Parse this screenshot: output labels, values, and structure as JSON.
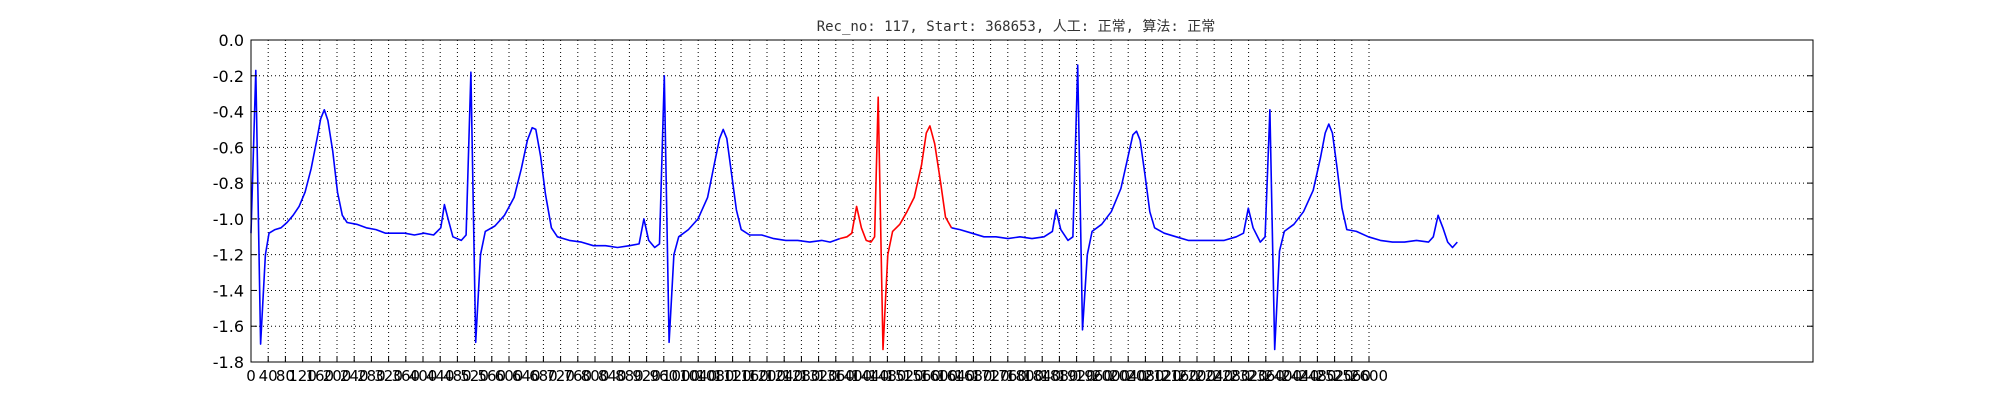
{
  "chart_data": {
    "type": "line",
    "title": "Rec_no: 117, Start: 368653, 人工: 正常, 算法: 正常",
    "xlabel": "",
    "ylabel": "",
    "xlim": [
      0,
      1300
    ],
    "ylim": [
      -1.8,
      0.0
    ],
    "grid": true,
    "y_ticks": [
      "0.0",
      "-0.2",
      "-0.4",
      "-0.6",
      "-0.8",
      "-1.0",
      "-1.2",
      "-1.4",
      "-1.6",
      "-1.8"
    ],
    "x_ticks": [
      "0",
      "40",
      "80",
      "120",
      "160",
      "200",
      "240",
      "280",
      "320",
      "360",
      "400",
      "440",
      "480",
      "520",
      "560",
      "600",
      "640",
      "680",
      "720",
      "760",
      "800",
      "840",
      "880",
      "920",
      "960",
      "1000",
      "1040",
      "1080",
      "1120",
      "1160",
      "1200",
      "1240",
      "1280",
      "1320",
      "1360",
      "1400",
      "1440",
      "1480",
      "1520",
      "1560",
      "1600",
      "1640",
      "1680",
      "1720",
      "1760",
      "1800",
      "1840",
      "1880",
      "1920",
      "1960",
      "2000",
      "2040",
      "2080",
      "2120",
      "2160",
      "2200",
      "2240",
      "2280",
      "2320",
      "2360",
      "2400",
      "2440",
      "2480",
      "2520",
      "2560",
      "2600"
    ],
    "series": [
      {
        "color": "#0000ff",
        "points": [
          [
            0,
            -1.08
          ],
          [
            4,
            -0.17
          ],
          [
            8,
            -1.7
          ],
          [
            12,
            -1.2
          ],
          [
            15,
            -1.08
          ],
          [
            20,
            -1.06
          ],
          [
            25,
            -1.05
          ],
          [
            30,
            -1.02
          ],
          [
            35,
            -0.98
          ],
          [
            40,
            -0.93
          ],
          [
            45,
            -0.85
          ],
          [
            50,
            -0.72
          ],
          [
            55,
            -0.55
          ],
          [
            58,
            -0.44
          ],
          [
            61,
            -0.39
          ],
          [
            64,
            -0.45
          ],
          [
            68,
            -0.62
          ],
          [
            72,
            -0.85
          ],
          [
            76,
            -0.98
          ],
          [
            80,
            -1.02
          ],
          [
            88,
            -1.03
          ],
          [
            96,
            -1.05
          ],
          [
            104,
            -1.06
          ],
          [
            112,
            -1.08
          ],
          [
            120,
            -1.08
          ],
          [
            128,
            -1.08
          ],
          [
            136,
            -1.09
          ],
          [
            144,
            -1.08
          ],
          [
            152,
            -1.09
          ],
          [
            158,
            -1.05
          ],
          [
            161,
            -0.92
          ],
          [
            164,
            -1.0
          ],
          [
            168,
            -1.1
          ],
          [
            175,
            -1.12
          ],
          [
            179,
            -1.09
          ],
          [
            183,
            -0.18
          ],
          [
            187,
            -1.69
          ],
          [
            191,
            -1.2
          ],
          [
            195,
            -1.07
          ],
          [
            203,
            -1.04
          ],
          [
            211,
            -0.98
          ],
          [
            219,
            -0.88
          ],
          [
            225,
            -0.72
          ],
          [
            230,
            -0.56
          ],
          [
            234,
            -0.49
          ],
          [
            237,
            -0.5
          ],
          [
            241,
            -0.65
          ],
          [
            245,
            -0.86
          ],
          [
            250,
            -1.05
          ],
          [
            255,
            -1.1
          ],
          [
            265,
            -1.12
          ],
          [
            275,
            -1.13
          ],
          [
            285,
            -1.15
          ],
          [
            295,
            -1.15
          ],
          [
            305,
            -1.16
          ],
          [
            315,
            -1.15
          ],
          [
            323,
            -1.14
          ],
          [
            327,
            -1.0
          ],
          [
            331,
            -1.12
          ],
          [
            336,
            -1.16
          ],
          [
            340,
            -1.14
          ],
          [
            344,
            -0.2
          ],
          [
            348,
            -1.69
          ],
          [
            352,
            -1.2
          ],
          [
            356,
            -1.1
          ],
          [
            364,
            -1.06
          ],
          [
            372,
            -1.0
          ],
          [
            380,
            -0.88
          ],
          [
            386,
            -0.68
          ],
          [
            390,
            -0.55
          ],
          [
            393,
            -0.5
          ],
          [
            396,
            -0.55
          ],
          [
            400,
            -0.75
          ],
          [
            404,
            -0.95
          ],
          [
            408,
            -1.06
          ],
          [
            415,
            -1.09
          ],
          [
            425,
            -1.09
          ],
          [
            435,
            -1.11
          ],
          [
            445,
            -1.12
          ],
          [
            455,
            -1.12
          ],
          [
            465,
            -1.13
          ],
          [
            475,
            -1.12
          ],
          [
            482,
            -1.13
          ],
          [
            490,
            -1.11
          ]
        ]
      },
      {
        "color": "#ff0000",
        "points": [
          [
            490,
            -1.11
          ],
          [
            496,
            -1.1
          ],
          [
            500,
            -1.08
          ],
          [
            504,
            -0.93
          ],
          [
            508,
            -1.05
          ],
          [
            512,
            -1.12
          ],
          [
            516,
            -1.13
          ],
          [
            519,
            -1.1
          ],
          [
            522,
            -0.32
          ],
          [
            526,
            -1.73
          ],
          [
            530,
            -1.2
          ],
          [
            534,
            -1.07
          ],
          [
            540,
            -1.03
          ],
          [
            546,
            -0.96
          ],
          [
            552,
            -0.88
          ],
          [
            558,
            -0.7
          ],
          [
            562,
            -0.52
          ],
          [
            565,
            -0.48
          ],
          [
            569,
            -0.58
          ],
          [
            574,
            -0.8
          ],
          [
            578,
            -0.99
          ],
          [
            583,
            -1.05
          ]
        ]
      },
      {
        "color": "#0000ff",
        "points": [
          [
            583,
            -1.05
          ],
          [
            590,
            -1.06
          ],
          [
            600,
            -1.08
          ],
          [
            610,
            -1.1
          ],
          [
            620,
            -1.1
          ],
          [
            630,
            -1.11
          ],
          [
            640,
            -1.1
          ],
          [
            650,
            -1.11
          ],
          [
            660,
            -1.1
          ],
          [
            667,
            -1.07
          ],
          [
            670,
            -0.95
          ],
          [
            674,
            -1.06
          ],
          [
            680,
            -1.12
          ],
          [
            684,
            -1.1
          ],
          [
            688,
            -0.14
          ],
          [
            692,
            -1.62
          ],
          [
            696,
            -1.2
          ],
          [
            700,
            -1.07
          ],
          [
            708,
            -1.03
          ],
          [
            716,
            -0.96
          ],
          [
            724,
            -0.83
          ],
          [
            730,
            -0.65
          ],
          [
            734,
            -0.53
          ],
          [
            737,
            -0.51
          ],
          [
            740,
            -0.56
          ],
          [
            744,
            -0.75
          ],
          [
            748,
            -0.96
          ],
          [
            752,
            -1.05
          ],
          [
            760,
            -1.08
          ],
          [
            770,
            -1.1
          ],
          [
            780,
            -1.12
          ],
          [
            790,
            -1.12
          ],
          [
            800,
            -1.12
          ],
          [
            810,
            -1.12
          ],
          [
            820,
            -1.1
          ],
          [
            826,
            -1.08
          ],
          [
            830,
            -0.94
          ],
          [
            834,
            -1.05
          ],
          [
            840,
            -1.13
          ],
          [
            844,
            -1.1
          ],
          [
            848,
            -0.39
          ],
          [
            852,
            -1.73
          ],
          [
            856,
            -1.18
          ],
          [
            860,
            -1.07
          ],
          [
            868,
            -1.03
          ],
          [
            876,
            -0.96
          ],
          [
            884,
            -0.84
          ],
          [
            890,
            -0.66
          ],
          [
            894,
            -0.52
          ],
          [
            897,
            -0.47
          ],
          [
            900,
            -0.52
          ],
          [
            904,
            -0.72
          ],
          [
            908,
            -0.94
          ],
          [
            912,
            -1.06
          ],
          [
            920,
            -1.07
          ],
          [
            930,
            -1.1
          ],
          [
            940,
            -1.12
          ],
          [
            950,
            -1.13
          ],
          [
            960,
            -1.13
          ],
          [
            970,
            -1.12
          ],
          [
            980,
            -1.13
          ],
          [
            984,
            -1.1
          ],
          [
            988,
            -0.98
          ],
          [
            992,
            -1.05
          ],
          [
            996,
            -1.13
          ],
          [
            1000,
            -1.16
          ],
          [
            1004,
            -1.13
          ]
        ]
      }
    ]
  }
}
